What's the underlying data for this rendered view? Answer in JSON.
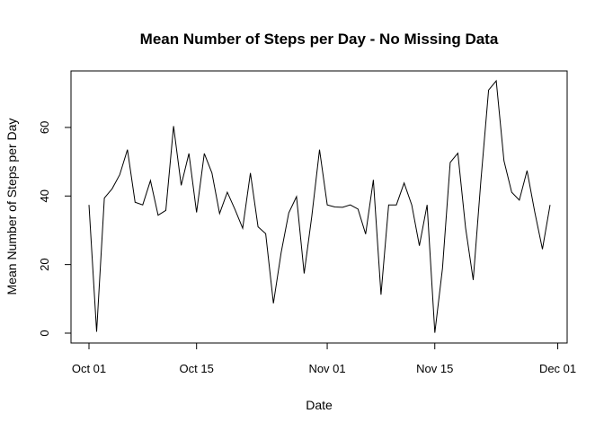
{
  "chart_data": {
    "type": "line",
    "title": "Mean Number of Steps per Day - No Missing Data",
    "xlabel": "Date",
    "ylabel": "Mean Number of Steps per Day",
    "x_tick_labels": [
      "Oct 01",
      "Oct 15",
      "Nov 01",
      "Nov 15",
      "Dec 01"
    ],
    "x_ticks": [
      "2012-10-01",
      "2012-10-15",
      "2012-11-01",
      "2012-11-15",
      "2012-12-01"
    ],
    "y_ticks": [
      0,
      20,
      40,
      60
    ],
    "xlim": [
      "2012-10-01",
      "2012-11-30"
    ],
    "ylim": [
      0,
      73.6
    ],
    "grid": false,
    "series": [
      {
        "x": [
          "2012-10-01",
          "2012-10-02",
          "2012-10-03",
          "2012-10-04",
          "2012-10-05",
          "2012-10-06",
          "2012-10-07",
          "2012-10-08",
          "2012-10-09",
          "2012-10-10",
          "2012-10-11",
          "2012-10-12",
          "2012-10-13",
          "2012-10-14",
          "2012-10-15",
          "2012-10-16",
          "2012-10-17",
          "2012-10-18",
          "2012-10-19",
          "2012-10-20",
          "2012-10-21",
          "2012-10-22",
          "2012-10-23",
          "2012-10-24",
          "2012-10-25",
          "2012-10-26",
          "2012-10-27",
          "2012-10-28",
          "2012-10-29",
          "2012-10-30",
          "2012-10-31",
          "2012-11-01",
          "2012-11-02",
          "2012-11-03",
          "2012-11-04",
          "2012-11-05",
          "2012-11-06",
          "2012-11-07",
          "2012-11-08",
          "2012-11-09",
          "2012-11-10",
          "2012-11-11",
          "2012-11-12",
          "2012-11-13",
          "2012-11-14",
          "2012-11-15",
          "2012-11-16",
          "2012-11-17",
          "2012-11-18",
          "2012-11-19",
          "2012-11-20",
          "2012-11-21",
          "2012-11-22",
          "2012-11-23",
          "2012-11-24",
          "2012-11-25",
          "2012-11-26",
          "2012-11-27",
          "2012-11-28",
          "2012-11-29",
          "2012-11-30"
        ],
        "values": [
          37.4,
          0.4,
          39.4,
          42.1,
          46.2,
          53.5,
          38.2,
          37.4,
          44.5,
          34.4,
          35.8,
          60.4,
          43.1,
          52.4,
          35.2,
          52.4,
          46.7,
          34.9,
          41.1,
          36.1,
          30.6,
          46.7,
          31.0,
          29.0,
          8.7,
          23.5,
          35.1,
          39.8,
          17.4,
          34.1,
          53.5,
          37.4,
          36.8,
          36.7,
          37.4,
          36.2,
          28.9,
          44.7,
          11.2,
          37.4,
          37.4,
          43.8,
          37.4,
          25.5,
          37.4,
          0.1,
          18.9,
          49.8,
          52.5,
          30.7,
          15.5,
          44.4,
          70.9,
          73.6,
          50.3,
          41.1,
          38.8,
          47.4,
          35.4,
          24.5,
          37.4
        ]
      }
    ]
  }
}
